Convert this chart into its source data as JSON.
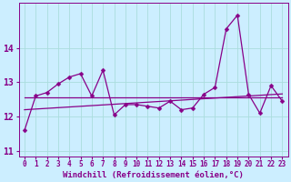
{
  "background_color": "#cceeff",
  "line_color": "#880088",
  "grid_color": "#aadddd",
  "xlabel": "Windchill (Refroidissement éolien,°C)",
  "x": [
    0,
    1,
    2,
    3,
    4,
    5,
    6,
    7,
    8,
    9,
    10,
    11,
    12,
    13,
    14,
    15,
    16,
    17,
    18,
    19,
    20,
    21,
    22,
    23
  ],
  "actual": [
    11.6,
    12.6,
    12.7,
    12.95,
    13.15,
    13.25,
    12.6,
    13.35,
    12.05,
    12.35,
    12.35,
    12.3,
    12.25,
    12.45,
    12.2,
    12.25,
    12.65,
    12.85,
    14.55,
    14.95,
    12.65,
    12.1,
    12.9,
    12.45
  ],
  "flat": [
    12.55,
    12.55,
    12.55,
    12.55,
    12.55,
    12.55,
    12.55,
    12.55,
    12.55,
    12.55,
    12.55,
    12.55,
    12.55,
    12.55,
    12.55,
    12.55,
    12.55,
    12.55,
    12.55,
    12.55,
    12.55,
    12.55,
    12.55,
    12.55
  ],
  "trend": [
    12.2,
    12.22,
    12.24,
    12.26,
    12.28,
    12.3,
    12.32,
    12.34,
    12.36,
    12.38,
    12.4,
    12.42,
    12.44,
    12.46,
    12.48,
    12.5,
    12.52,
    12.54,
    12.56,
    12.58,
    12.6,
    12.62,
    12.64,
    12.66
  ],
  "ylim": [
    10.85,
    15.3
  ],
  "xlim": [
    -0.5,
    23.5
  ],
  "yticks": [
    11,
    12,
    13,
    14
  ],
  "xlabel_fontsize": 6.5,
  "ytick_fontsize": 7,
  "xtick_fontsize": 5.5,
  "linewidth": 0.9,
  "markersize": 2.5
}
